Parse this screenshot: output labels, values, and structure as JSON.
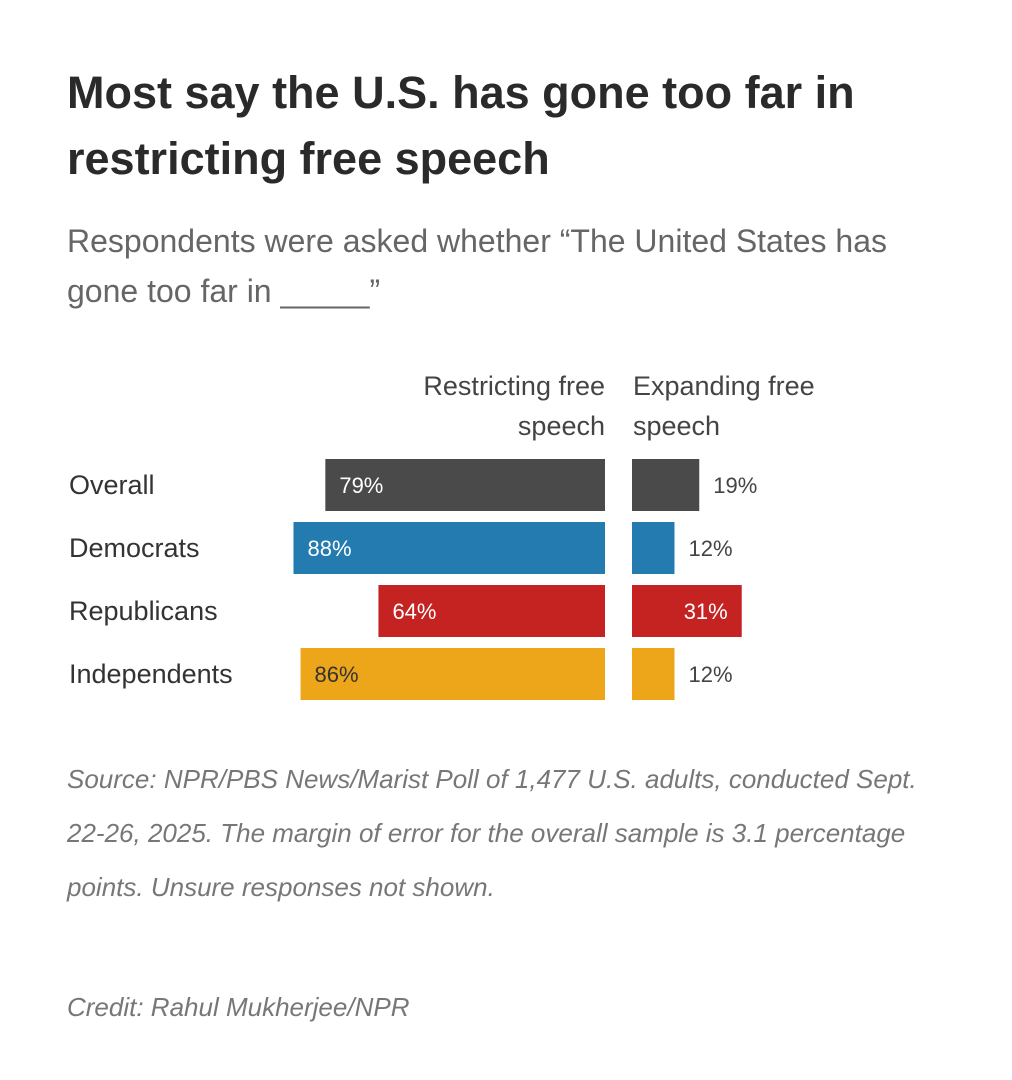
{
  "chart_data": {
    "type": "bar",
    "title": "Most say the U.S. has gone too far in restricting free speech",
    "subtitle": "Respondents were asked whether “The United States has gone too far in _____”",
    "categories": [
      "Overall",
      "Democrats",
      "Republicans",
      "Independents"
    ],
    "series": [
      {
        "name": "Restricting free speech",
        "values": [
          79,
          88,
          64,
          86
        ],
        "labels": [
          "79%",
          "88%",
          "64%",
          "86%"
        ]
      },
      {
        "name": "Expanding free speech",
        "values": [
          19,
          12,
          31,
          12
        ],
        "labels": [
          "19%",
          "12%",
          "31%",
          "12%"
        ]
      }
    ],
    "colors": [
      "#4a4a4a",
      "#237bb0",
      "#c52222",
      "#eda51a"
    ],
    "label_colors": [
      "#ffffff",
      "#ffffff",
      "#ffffff",
      "#333333"
    ],
    "unit": "%",
    "xlim": [
      0,
      100
    ]
  },
  "footer": {
    "source": "Source: NPR/PBS News/Marist Poll of 1,477 U.S. adults, conducted Sept. 22-26, 2025. The margin of error for the overall sample is 3.1 percentage points. Unsure responses not shown.",
    "credit": "Credit: Rahul Mukherjee/NPR"
  }
}
